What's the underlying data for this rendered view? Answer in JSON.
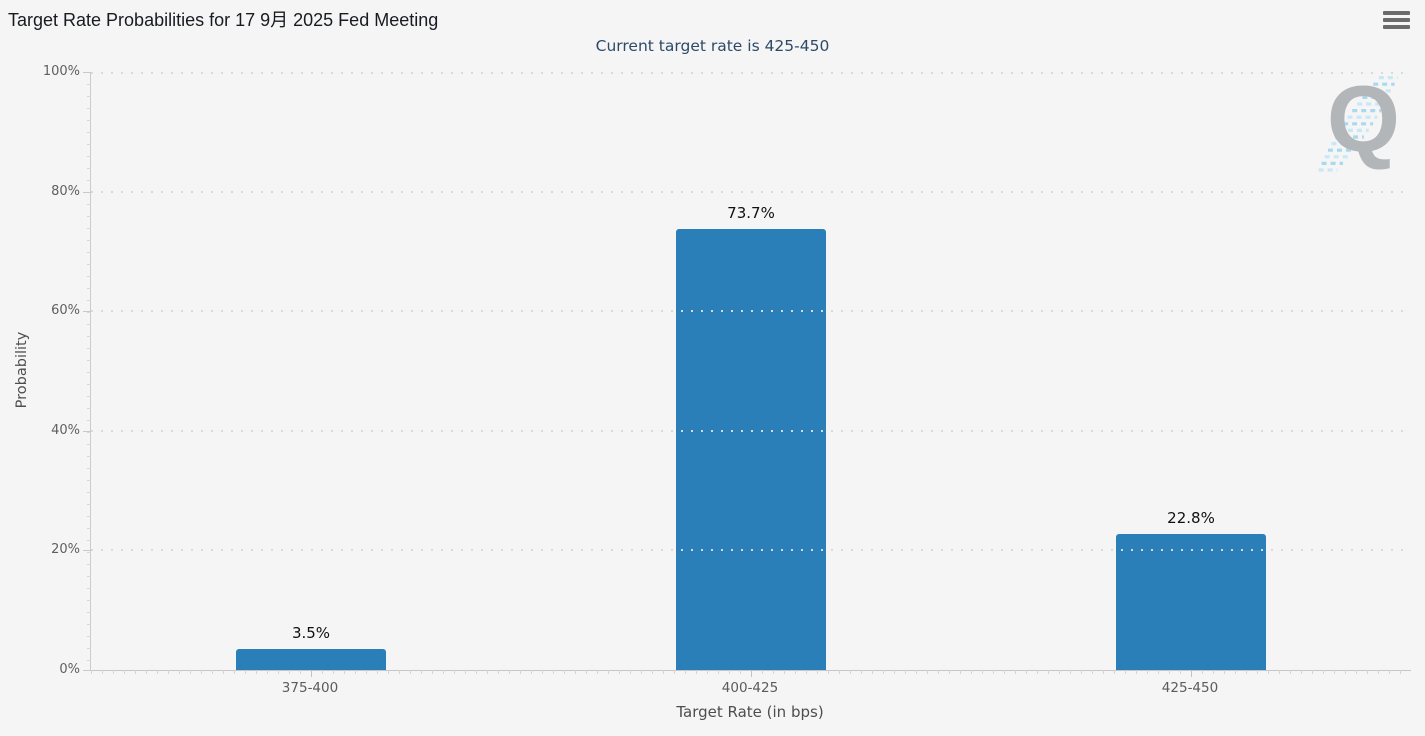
{
  "header": {
    "title": "Target Rate Probabilities for 17 9月 2025 Fed Meeting",
    "menu_icon": "hamburger-icon"
  },
  "chart_data": {
    "type": "bar",
    "title": "Target Rate Probabilities for 17 9月 2025 Fed Meeting",
    "subtitle": "Current target rate is 425-450",
    "categories": [
      "375-400",
      "400-425",
      "425-450"
    ],
    "values": [
      3.5,
      73.7,
      22.8
    ],
    "data_labels": [
      "3.5%",
      "73.7%",
      "22.8%"
    ],
    "xlabel": "Target Rate (in bps)",
    "ylabel": "Probability",
    "ylim": [
      0,
      100
    ],
    "ytick_step": 20,
    "yticks": [
      "0%",
      "20%",
      "40%",
      "60%",
      "80%",
      "100%"
    ],
    "grid": "dotted-horizontal",
    "legend": "none",
    "bar_color": "#2a7fb8",
    "watermark_letter": "Q"
  }
}
